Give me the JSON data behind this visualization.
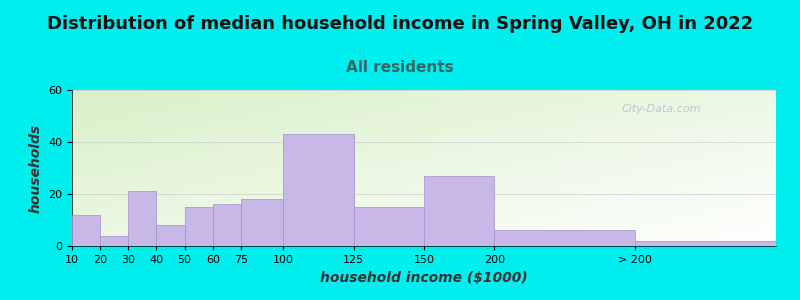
{
  "title": "Distribution of median household income in Spring Valley, OH in 2022",
  "subtitle": "All residents",
  "xlabel": "household income ($1000)",
  "ylabel": "households",
  "background_color": "#00EEEE",
  "bar_color": "#c8b8e8",
  "bar_edge_color": "#a090cc",
  "ylim": [
    0,
    60
  ],
  "yticks": [
    0,
    20,
    40,
    60
  ],
  "bar_labels": [
    "10",
    "20",
    "30",
    "40",
    "50",
    "60",
    "75",
    "100",
    "125",
    "150",
    "200",
    "> 200"
  ],
  "bar_values": [
    12,
    4,
    21,
    8,
    15,
    16,
    18,
    43,
    15,
    27,
    6,
    2
  ],
  "bar_lefts": [
    0,
    1,
    2,
    3,
    4,
    5,
    6,
    7,
    8,
    9,
    10,
    11
  ],
  "bar_widths_rel": [
    1,
    1,
    1,
    1,
    1,
    1,
    1.5,
    2.5,
    2.5,
    2.5,
    5,
    5
  ],
  "tick_positions": [
    0,
    1,
    2,
    3,
    4,
    5,
    6,
    7,
    8,
    9,
    10,
    11
  ],
  "watermark": "City-Data.com",
  "title_fontsize": 13,
  "subtitle_fontsize": 11,
  "axis_label_fontsize": 10,
  "tick_fontsize": 8,
  "title_color": "#111111",
  "subtitle_color": "#336666"
}
